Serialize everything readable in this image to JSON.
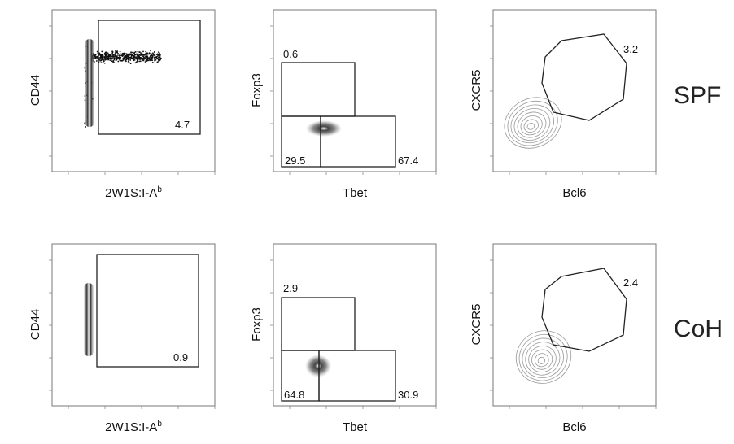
{
  "rows": [
    {
      "label": "SPF",
      "panels": [
        {
          "xlabel": "2W1S:I-A",
          "xlabel_sup": "b",
          "ylabel": "CD44",
          "gates": [
            {
              "value": "4.7"
            }
          ]
        },
        {
          "xlabel": "Tbet",
          "ylabel": "Foxp3",
          "gates": [
            {
              "value": "0.6"
            },
            {
              "value": "29.5"
            },
            {
              "value": "67.4"
            }
          ]
        },
        {
          "xlabel": "Bcl6",
          "ylabel": "CXCR5",
          "gates": [
            {
              "value": "3.2"
            }
          ]
        }
      ]
    },
    {
      "label": "CoH",
      "panels": [
        {
          "xlabel": "2W1S:I-A",
          "xlabel_sup": "b",
          "ylabel": "CD44",
          "gates": [
            {
              "value": "0.9"
            }
          ]
        },
        {
          "xlabel": "Tbet",
          "ylabel": "Foxp3",
          "gates": [
            {
              "value": "2.9"
            },
            {
              "value": "64.8"
            },
            {
              "value": "30.9"
            }
          ]
        },
        {
          "xlabel": "Bcl6",
          "ylabel": "CXCR5",
          "gates": [
            {
              "value": "2.4"
            }
          ]
        }
      ]
    }
  ],
  "chart_data": [
    {
      "type": "scatter",
      "sample": "SPF",
      "xlabel": "2W1S:I-Ab",
      "ylabel": "CD44",
      "gates": [
        {
          "region": "2W1S:I-Ab+ CD44+",
          "percent": 4.7
        }
      ]
    },
    {
      "type": "scatter",
      "sample": "SPF",
      "xlabel": "Tbet",
      "ylabel": "Foxp3",
      "gates": [
        {
          "region": "Foxp3+",
          "percent": 0.6
        },
        {
          "region": "Foxp3- Tbet-",
          "percent": 29.5
        },
        {
          "region": "Foxp3- Tbet+",
          "percent": 67.4
        }
      ]
    },
    {
      "type": "scatter",
      "sample": "SPF",
      "xlabel": "Bcl6",
      "ylabel": "CXCR5",
      "gates": [
        {
          "region": "CXCR5+ Bcl6+",
          "percent": 3.2
        }
      ]
    },
    {
      "type": "scatter",
      "sample": "CoH",
      "xlabel": "2W1S:I-Ab",
      "ylabel": "CD44",
      "gates": [
        {
          "region": "2W1S:I-Ab+ CD44+",
          "percent": 0.9
        }
      ]
    },
    {
      "type": "scatter",
      "sample": "CoH",
      "xlabel": "Tbet",
      "ylabel": "Foxp3",
      "gates": [
        {
          "region": "Foxp3+",
          "percent": 2.9
        },
        {
          "region": "Foxp3- Tbet-",
          "percent": 64.8
        },
        {
          "region": "Foxp3- Tbet+",
          "percent": 30.9
        }
      ]
    },
    {
      "type": "scatter",
      "sample": "CoH",
      "xlabel": "Bcl6",
      "ylabel": "CXCR5",
      "gates": [
        {
          "region": "CXCR5+ Bcl6+",
          "percent": 2.4
        }
      ]
    }
  ]
}
